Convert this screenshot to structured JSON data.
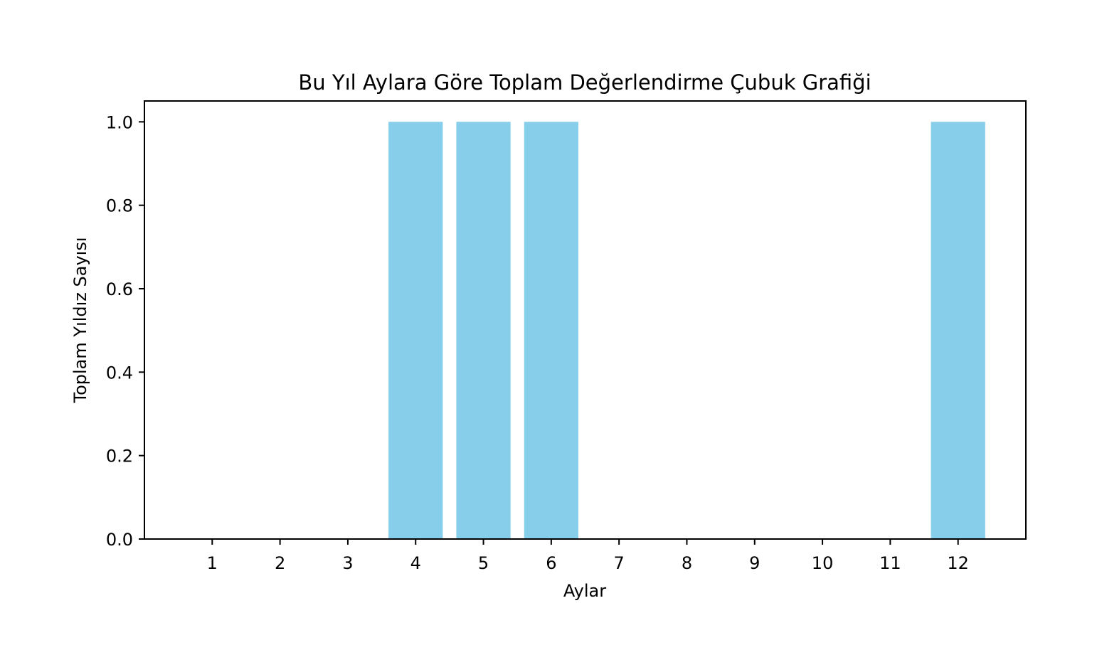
{
  "chart_data": {
    "type": "bar",
    "title": "Bu Yıl Aylara Göre Toplam Değerlendirme Çubuk Grafiği",
    "xlabel": "Aylar",
    "ylabel": "Toplam Yıldız Sayısı",
    "categories": [
      "1",
      "2",
      "3",
      "4",
      "5",
      "6",
      "7",
      "8",
      "9",
      "10",
      "11",
      "12"
    ],
    "values": [
      0,
      0,
      0,
      1,
      1,
      1,
      0,
      0,
      0,
      0,
      0,
      1
    ],
    "ylim": [
      0,
      1.05
    ],
    "yticks": [
      "0.0",
      "0.2",
      "0.4",
      "0.6",
      "0.8",
      "1.0"
    ],
    "xlim": [
      0,
      13
    ],
    "grid": false,
    "bar_color": "#87ceeb"
  }
}
